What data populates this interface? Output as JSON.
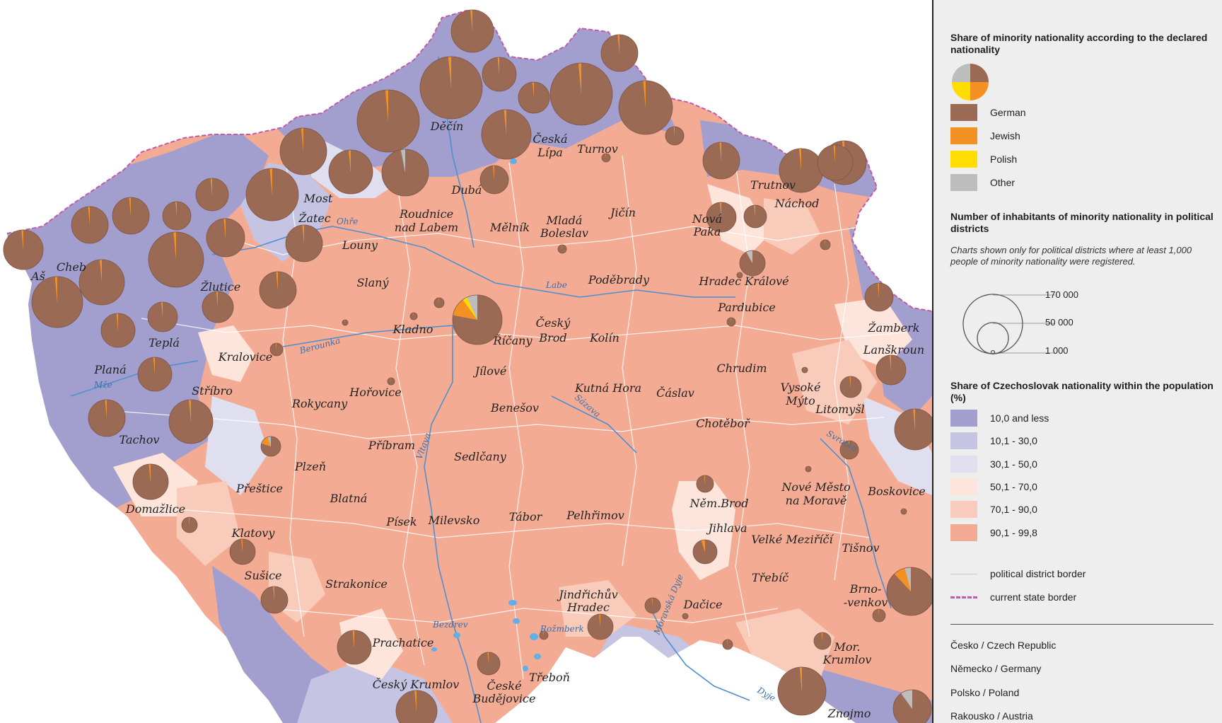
{
  "colors": {
    "german": "#9a6a55",
    "jewish": "#f39122",
    "polish": "#ffdd00",
    "other": "#bdbdbd",
    "cz_10": "#a29fcf",
    "cz_30": "#c6c4e3",
    "cz_50": "#e0dff0",
    "cz_70": "#fde5dc",
    "cz_90": "#f9cbbb",
    "cz_99": "#f4ab93",
    "river": "#4f8fd0",
    "district_border": "#ffffff",
    "state_border": "#c05aa8"
  },
  "legend": {
    "share_heading": "Share of minority nationality according to the declared nationality",
    "nationalities": [
      {
        "label": "German",
        "color": "#9a6a55"
      },
      {
        "label": "Jewish",
        "color": "#f39122"
      },
      {
        "label": "Polish",
        "color": "#ffdd00"
      },
      {
        "label": "Other",
        "color": "#bdbdbd"
      }
    ],
    "count_heading": "Number of inhabitants of minority nationality in political districts",
    "count_note": "Charts shown only for political districts where at least 1,000 people of minority nationality were registered.",
    "size_values": [
      "170 000",
      "50 000",
      "1 000"
    ],
    "czech_heading": "Share of Czechoslovak nationality within the population (%)",
    "czech_classes": [
      {
        "label": "10,0 and less",
        "color": "#a29fcf"
      },
      {
        "label": "10,1 - 30,0",
        "color": "#c6c4e3"
      },
      {
        "label": "30,1 - 50,0",
        "color": "#e0dff0"
      },
      {
        "label": "50,1 - 70,0",
        "color": "#fde5dc"
      },
      {
        "label": "70,1 - 90,0",
        "color": "#f9cbbb"
      },
      {
        "label": "90,1 - 99,8",
        "color": "#f4ab93"
      }
    ],
    "border_political": "political district border",
    "border_state": "current state border",
    "countries": [
      "Česko / Czech Republic",
      "Německo / Germany",
      "Polsko / Poland",
      "Rakousko / Austria"
    ]
  },
  "map": {
    "towns": [
      {
        "name": "Děčín"
      },
      {
        "name": "Česká"
      },
      {
        "name": "Lípa"
      },
      {
        "name": "Turnov"
      },
      {
        "name": "Dubá"
      },
      {
        "name": "Trutnov"
      },
      {
        "name": "Most"
      },
      {
        "name": "Žatec"
      },
      {
        "name": "Roudnice"
      },
      {
        "name": "nad Labem"
      },
      {
        "name": "Mělník"
      },
      {
        "name": "Mladá"
      },
      {
        "name": "Boleslav"
      },
      {
        "name": "Jičín"
      },
      {
        "name": "Nová"
      },
      {
        "name": "Paka"
      },
      {
        "name": "Náchod"
      },
      {
        "name": "Louny"
      },
      {
        "name": "Aš"
      },
      {
        "name": "Cheb"
      },
      {
        "name": "Žlutice"
      },
      {
        "name": "Slaný"
      },
      {
        "name": "Poděbrady"
      },
      {
        "name": "Hradec Králové"
      },
      {
        "name": "Pardubice"
      },
      {
        "name": "Kladno"
      },
      {
        "name": "Český"
      },
      {
        "name": "Brod"
      },
      {
        "name": "Kolín"
      },
      {
        "name": "Říčany"
      },
      {
        "name": "Teplá"
      },
      {
        "name": "Žamberk"
      },
      {
        "name": "Lanškroun"
      },
      {
        "name": "Kralovice"
      },
      {
        "name": "Planá"
      },
      {
        "name": "Jílové"
      },
      {
        "name": "Chrudim"
      },
      {
        "name": "Kutná Hora"
      },
      {
        "name": "Čáslav"
      },
      {
        "name": "Hořovice"
      },
      {
        "name": "Stříbro"
      },
      {
        "name": "Vysoké"
      },
      {
        "name": "Mýto"
      },
      {
        "name": "Rokycany"
      },
      {
        "name": "Benešov"
      },
      {
        "name": "Litomyšl"
      },
      {
        "name": "Chotěboř"
      },
      {
        "name": "Tachov"
      },
      {
        "name": "Příbram"
      },
      {
        "name": "Sedlčany"
      },
      {
        "name": "Plzeň"
      },
      {
        "name": "Přeštice"
      },
      {
        "name": "Blatná"
      },
      {
        "name": "Nové Město"
      },
      {
        "name": "na Moravě"
      },
      {
        "name": "Boskovice"
      },
      {
        "name": "Něm.Brod"
      },
      {
        "name": "Domažlice"
      },
      {
        "name": "Písek"
      },
      {
        "name": "Milevsko"
      },
      {
        "name": "Tábor"
      },
      {
        "name": "Pelhřimov"
      },
      {
        "name": "Jihlava"
      },
      {
        "name": "Klatovy"
      },
      {
        "name": "Velké Meziříčí"
      },
      {
        "name": "Tišnov"
      },
      {
        "name": "Sušice"
      },
      {
        "name": "Strakonice"
      },
      {
        "name": "Třebíč"
      },
      {
        "name": "Jindřichův"
      },
      {
        "name": "Hradec"
      },
      {
        "name": "Brno-"
      },
      {
        "name": "-venkov"
      },
      {
        "name": "Dačice"
      },
      {
        "name": "Prachatice"
      },
      {
        "name": "Mor."
      },
      {
        "name": "Krumlov"
      },
      {
        "name": "Český Krumlov"
      },
      {
        "name": "České"
      },
      {
        "name": "Budějovice"
      },
      {
        "name": "Třeboň"
      },
      {
        "name": "Znojmo"
      }
    ],
    "rivers": [
      {
        "name": "Ohře"
      },
      {
        "name": "Labe"
      },
      {
        "name": "Berounka"
      },
      {
        "name": "Mže"
      },
      {
        "name": "Sázava"
      },
      {
        "name": "Vltava"
      },
      {
        "name": "Svratka"
      },
      {
        "name": "Moravská Dyje"
      },
      {
        "name": "Bezdrev"
      },
      {
        "name": "Rožmberk"
      },
      {
        "name": "Dyje"
      }
    ]
  }
}
